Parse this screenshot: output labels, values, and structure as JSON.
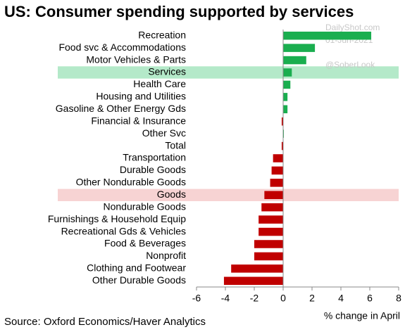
{
  "chart_data": {
    "type": "hbar",
    "title": "US: Consumer spending supported by services",
    "categories": [
      "Recreation",
      "Food svc & Accommodations",
      "Motor Vehicles & Parts",
      "Services",
      "Health Care",
      "Housing and Utilities",
      "Gasoline & Other Energy Gds",
      "Financial & Insurance",
      "Other Svc",
      "Total",
      "Transportation",
      "Durable Goods",
      "Other Nondurable Goods",
      "Goods",
      "Nondurable Goods",
      "Furnishings & Household Equip",
      "Recreational Gds & Vehicles",
      "Food & Beverages",
      "Nonprofit",
      "Clothing and Footwear",
      "Other Durable Goods"
    ],
    "values": [
      6.1,
      2.2,
      1.6,
      0.6,
      0.5,
      0.3,
      0.3,
      -0.1,
      0,
      -0.1,
      -0.7,
      -0.8,
      -0.9,
      -1.3,
      -1.5,
      -1.7,
      -1.7,
      -2.0,
      -2.0,
      -3.6,
      -4.1
    ],
    "positive_color": "#1aae4f",
    "negative_color": "#c00000",
    "highlights": [
      {
        "category": "Services",
        "color": "#b4e9c9"
      },
      {
        "category": "Goods",
        "color": "#f7d3d3"
      }
    ],
    "xlim": [
      -6,
      8
    ],
    "xticks": [
      -6,
      -4,
      -2,
      0,
      2,
      4,
      6,
      8
    ],
    "x_label": "% change in April",
    "source": "Source: Oxford Economics/Haver Analytics",
    "watermarks": [
      "DailyShot.com",
      "01-Jun-2021",
      "@SoberLook"
    ]
  }
}
